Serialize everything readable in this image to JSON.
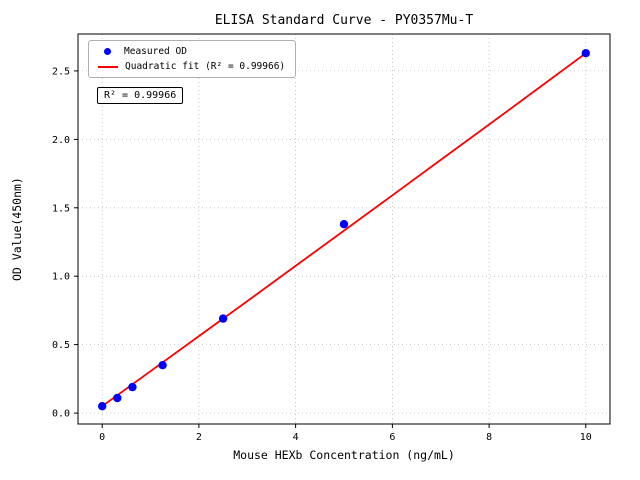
{
  "chart_data": {
    "type": "scatter",
    "title": "ELISA Standard Curve - PY0357Mu-T",
    "xlabel": "Mouse HEXb Concentration (ng/mL)",
    "ylabel": "OD Value(450nm)",
    "xlim": [
      -0.5,
      10.5
    ],
    "ylim": [
      -0.08,
      2.77
    ],
    "grid": true,
    "legend_position": "upper-left",
    "xticks": [
      0,
      2,
      4,
      6,
      8,
      10
    ],
    "xtick_labels": [
      "0",
      "2",
      "4",
      "6",
      "8",
      "10"
    ],
    "yticks": [
      0.0,
      0.5,
      1.0,
      1.5,
      2.0,
      2.5
    ],
    "ytick_labels": [
      "0.0",
      "0.5",
      "1.0",
      "1.5",
      "2.0",
      "2.5"
    ],
    "series": [
      {
        "name": "Measured OD",
        "marker": "circle",
        "color": "#0000ff",
        "x": [
          0,
          0.3125,
          0.625,
          1.25,
          2.5,
          5,
          10
        ],
        "y": [
          0.05,
          0.11,
          0.19,
          0.35,
          0.69,
          1.38,
          2.63
        ]
      }
    ],
    "fit": {
      "name": "Quadratic fit (R² = 0.99966)",
      "color": "#ff0000",
      "x": [
        0,
        1,
        2,
        3,
        4,
        5,
        6,
        7,
        8,
        9,
        10
      ],
      "y": [
        0.05,
        0.306,
        0.562,
        0.818,
        1.075,
        1.333,
        1.591,
        1.85,
        2.109,
        2.369,
        2.63
      ]
    },
    "annotation": "R² = 0.99966",
    "r_squared": "0.99966"
  }
}
